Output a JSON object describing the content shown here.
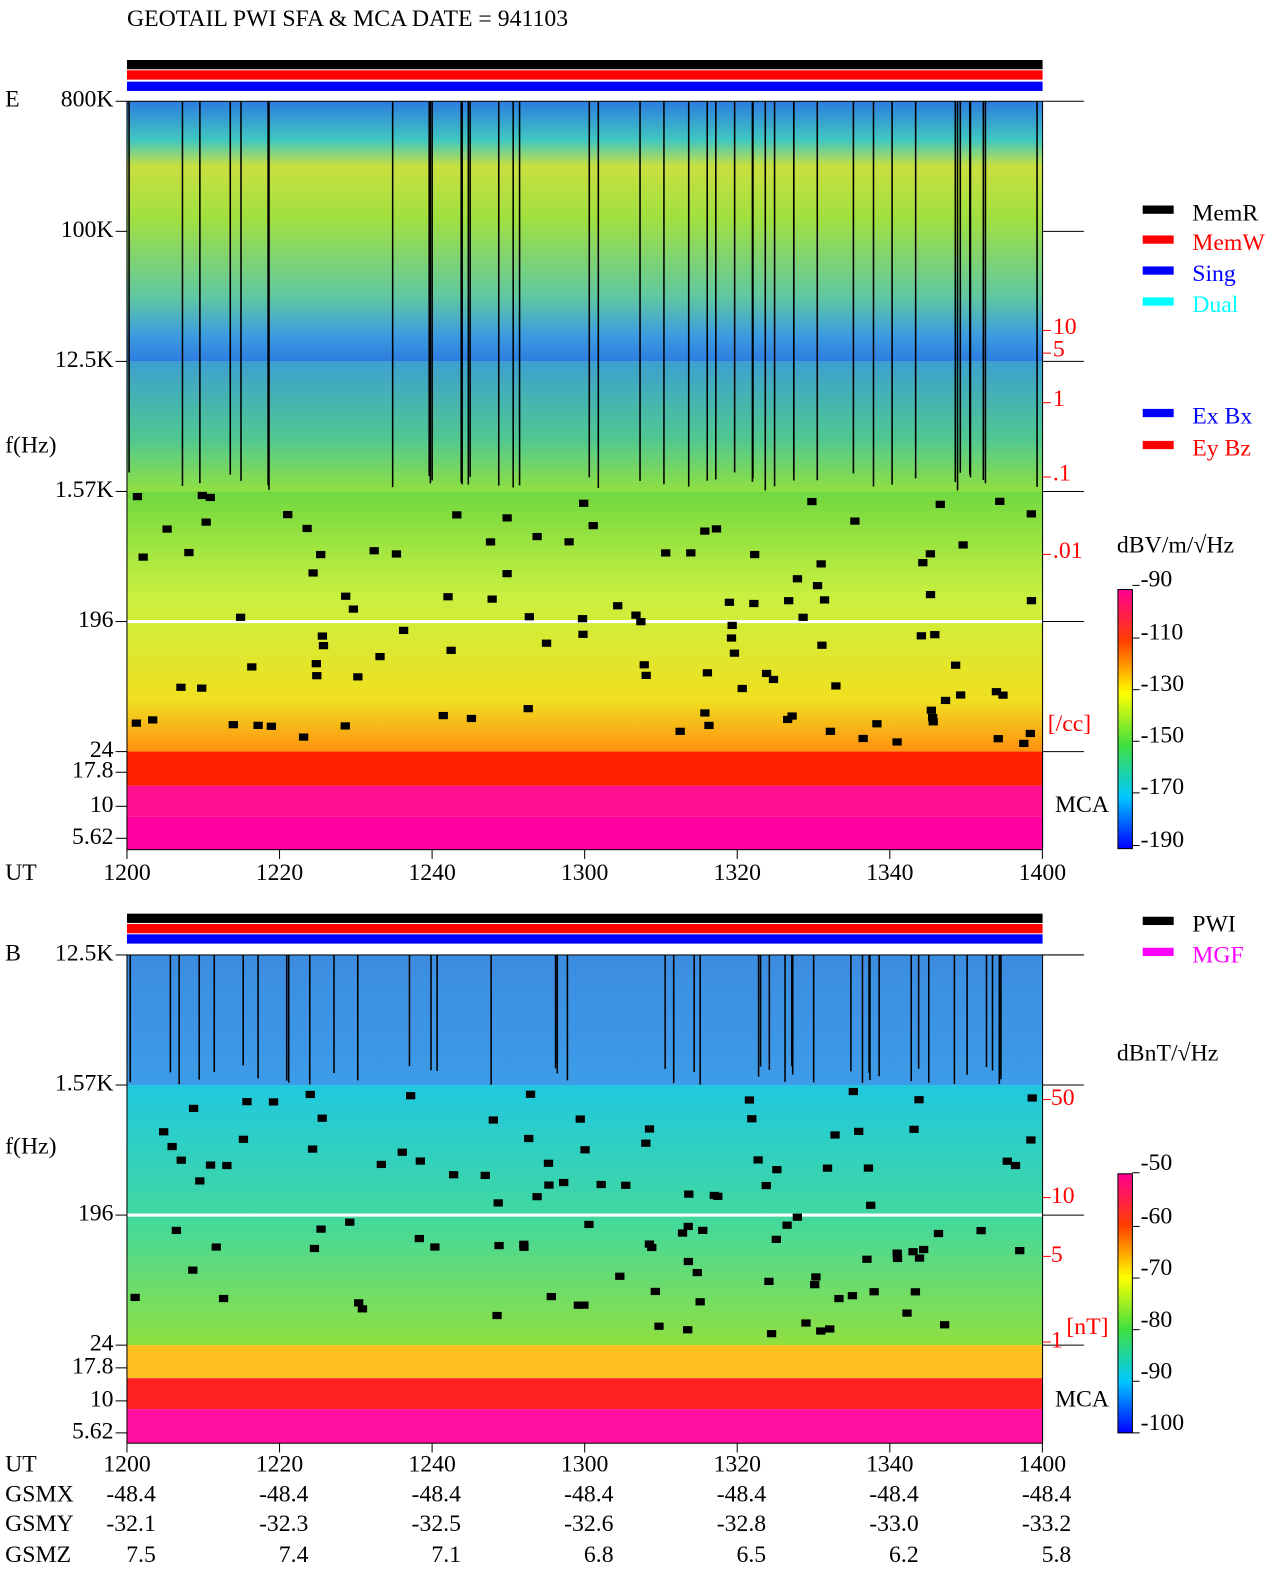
{
  "title": "GEOTAIL  PWI SFA & MCA   DATE = 941103",
  "panel_e": {
    "label": "E",
    "yticks": [
      "800K",
      "100K",
      "12.5K",
      "1.57K",
      "196",
      "24",
      "17.8",
      "10",
      "5.62"
    ],
    "ylabel": "f(Hz)",
    "density_ticks": [
      "10",
      "5",
      "1",
      ".1",
      ".01"
    ],
    "density_unit": "[/cc]",
    "mca": "MCA",
    "xlabel": "UT",
    "xticks": [
      "1200",
      "1220",
      "1240",
      "1300",
      "1320",
      "1340",
      "1400"
    ],
    "colorbar_unit": "dBV/m/√Hz",
    "colorbar_ticks": [
      "-90",
      "-110",
      "-130",
      "-150",
      "-170",
      "-190"
    ],
    "legend_mem": [
      "MemR",
      "MemW",
      "Sing",
      "Dual"
    ],
    "legend_ant": [
      "Ex Bx",
      "Ey Bz"
    ]
  },
  "panel_b": {
    "label": "B",
    "yticks": [
      "12.5K",
      "1.57K",
      "196",
      "24",
      "17.8",
      "10",
      "5.62"
    ],
    "ylabel": "f(Hz)",
    "field_ticks": [
      "50",
      "10",
      "5",
      "1"
    ],
    "field_unit": "[nT]",
    "mca": "MCA",
    "xlabel": "UT",
    "xticks": [
      "1200",
      "1220",
      "1240",
      "1300",
      "1320",
      "1340",
      "1400"
    ],
    "colorbar_unit": "dBnT/√Hz",
    "colorbar_ticks": [
      "-50",
      "-60",
      "-70",
      "-80",
      "-90",
      "-100"
    ],
    "legend": [
      "PWI",
      "MGF"
    ]
  },
  "orbit": [
    {
      "label": "GSMX",
      "values": [
        "-48.4",
        "-48.4",
        "-48.4",
        "-48.4",
        "-48.4",
        "-48.4",
        "-48.4"
      ]
    },
    {
      "label": "GSMY",
      "values": [
        "-32.1",
        "-32.3",
        "-32.5",
        "-32.6",
        "-32.8",
        "-33.0",
        "-33.2"
      ]
    },
    {
      "label": "GSMZ",
      "values": [
        "7.5",
        "7.4",
        "7.1",
        "6.8",
        "6.5",
        "6.2",
        "5.8"
      ]
    }
  ]
}
